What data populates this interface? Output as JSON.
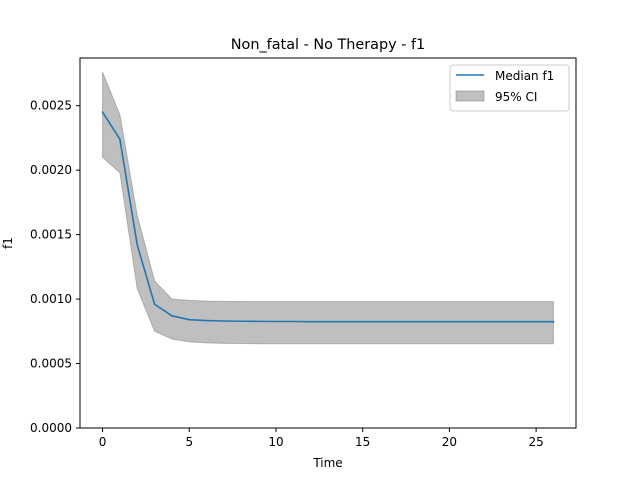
{
  "chart_data": {
    "type": "line",
    "title": "Non_fatal - No Therapy - f1",
    "xlabel": "Time",
    "ylabel": "f1",
    "xlim": [
      -1.3,
      27.3
    ],
    "ylim": [
      0,
      0.00287
    ],
    "xticks": [
      0,
      5,
      10,
      15,
      20,
      25
    ],
    "yticks": [
      0.0,
      0.0005,
      0.001,
      0.0015,
      0.002,
      0.0025
    ],
    "xtick_labels": [
      "0",
      "5",
      "10",
      "15",
      "20",
      "25"
    ],
    "ytick_labels": [
      "0.0000",
      "0.0005",
      "0.0010",
      "0.0015",
      "0.0020",
      "0.0025"
    ],
    "grid": false,
    "legend_position": "top-right",
    "x": [
      0,
      1,
      2,
      3,
      4,
      5,
      6,
      7,
      8,
      9,
      10,
      11,
      12,
      13,
      14,
      15,
      16,
      17,
      18,
      19,
      20,
      21,
      22,
      23,
      24,
      25,
      26
    ],
    "series": [
      {
        "name": "Median f1",
        "color": "#1f77b4",
        "values": [
          0.00245,
          0.00224,
          0.00142,
          0.00096,
          0.00087,
          0.00084,
          0.000833,
          0.00083,
          0.000828,
          0.000827,
          0.000826,
          0.000826,
          0.000825,
          0.000825,
          0.000825,
          0.000825,
          0.000825,
          0.000825,
          0.000825,
          0.000825,
          0.000825,
          0.000825,
          0.000825,
          0.000825,
          0.000825,
          0.000825,
          0.000825
        ]
      }
    ],
    "band": {
      "name": "95% CI",
      "color": "#808080",
      "lower": [
        0.0021,
        0.00198,
        0.00108,
        0.00075,
        0.00069,
        0.000668,
        0.00066,
        0.000656,
        0.000655,
        0.000654,
        0.000654,
        0.000654,
        0.000654,
        0.000654,
        0.000654,
        0.000654,
        0.000654,
        0.000654,
        0.000654,
        0.000654,
        0.000654,
        0.000654,
        0.000654,
        0.000654,
        0.000654,
        0.000654,
        0.000654
      ],
      "upper": [
        0.00276,
        0.00243,
        0.00165,
        0.00114,
        0.001,
        0.00099,
        0.000984,
        0.000982,
        0.000981,
        0.00098,
        0.00098,
        0.00098,
        0.00098,
        0.00098,
        0.00098,
        0.00098,
        0.00098,
        0.00098,
        0.00098,
        0.00098,
        0.00098,
        0.00098,
        0.00098,
        0.00098,
        0.00098,
        0.00098,
        0.00098
      ]
    }
  }
}
